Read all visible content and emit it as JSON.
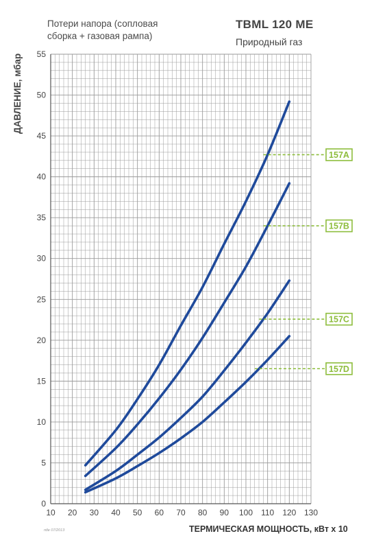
{
  "header": {
    "subtitle_line1": "Потери напора (сопловая",
    "subtitle_line2": "сборка + газовая рампа)",
    "model": "TBML 120 ME",
    "gas": "Природный газ"
  },
  "footnote": "ntle 07/2013",
  "chart_data": {
    "type": "line",
    "xlabel": "ТЕРМИЧЕСКАЯ МОЩНОСТЬ, кВт х 10",
    "ylabel": "ДАВЛЕНИЕ, мбар",
    "xlim": [
      10,
      130
    ],
    "ylim": [
      0,
      55
    ],
    "xticks": [
      10,
      20,
      30,
      40,
      50,
      60,
      70,
      80,
      90,
      100,
      110,
      120,
      130
    ],
    "yticks": [
      0,
      5,
      10,
      15,
      20,
      25,
      30,
      35,
      40,
      45,
      50,
      55
    ],
    "grid": true,
    "line_color": "#1f4a9b",
    "label_color": "#8dbd3c",
    "series": [
      {
        "name": "157A",
        "x": [
          26,
          40,
          50,
          60,
          70,
          80,
          90,
          100,
          110,
          120
        ],
        "values": [
          4.7,
          9.0,
          12.8,
          17.0,
          21.8,
          26.5,
          31.8,
          37.0,
          42.7,
          49.2
        ]
      },
      {
        "name": "157B",
        "x": [
          26,
          40,
          50,
          60,
          70,
          80,
          90,
          100,
          110,
          120
        ],
        "values": [
          3.4,
          6.8,
          9.7,
          12.9,
          16.4,
          20.3,
          24.6,
          29.0,
          34.0,
          39.2
        ]
      },
      {
        "name": "157C",
        "x": [
          26,
          40,
          50,
          60,
          70,
          80,
          90,
          100,
          110,
          120
        ],
        "values": [
          1.7,
          4.0,
          6.0,
          8.1,
          10.5,
          13.1,
          16.3,
          19.7,
          23.3,
          27.3
        ]
      },
      {
        "name": "157D",
        "x": [
          26,
          40,
          50,
          60,
          70,
          80,
          90,
          100,
          110,
          120
        ],
        "values": [
          1.4,
          3.1,
          4.6,
          6.2,
          8.0,
          10.0,
          12.4,
          14.9,
          17.6,
          20.5
        ]
      }
    ]
  }
}
